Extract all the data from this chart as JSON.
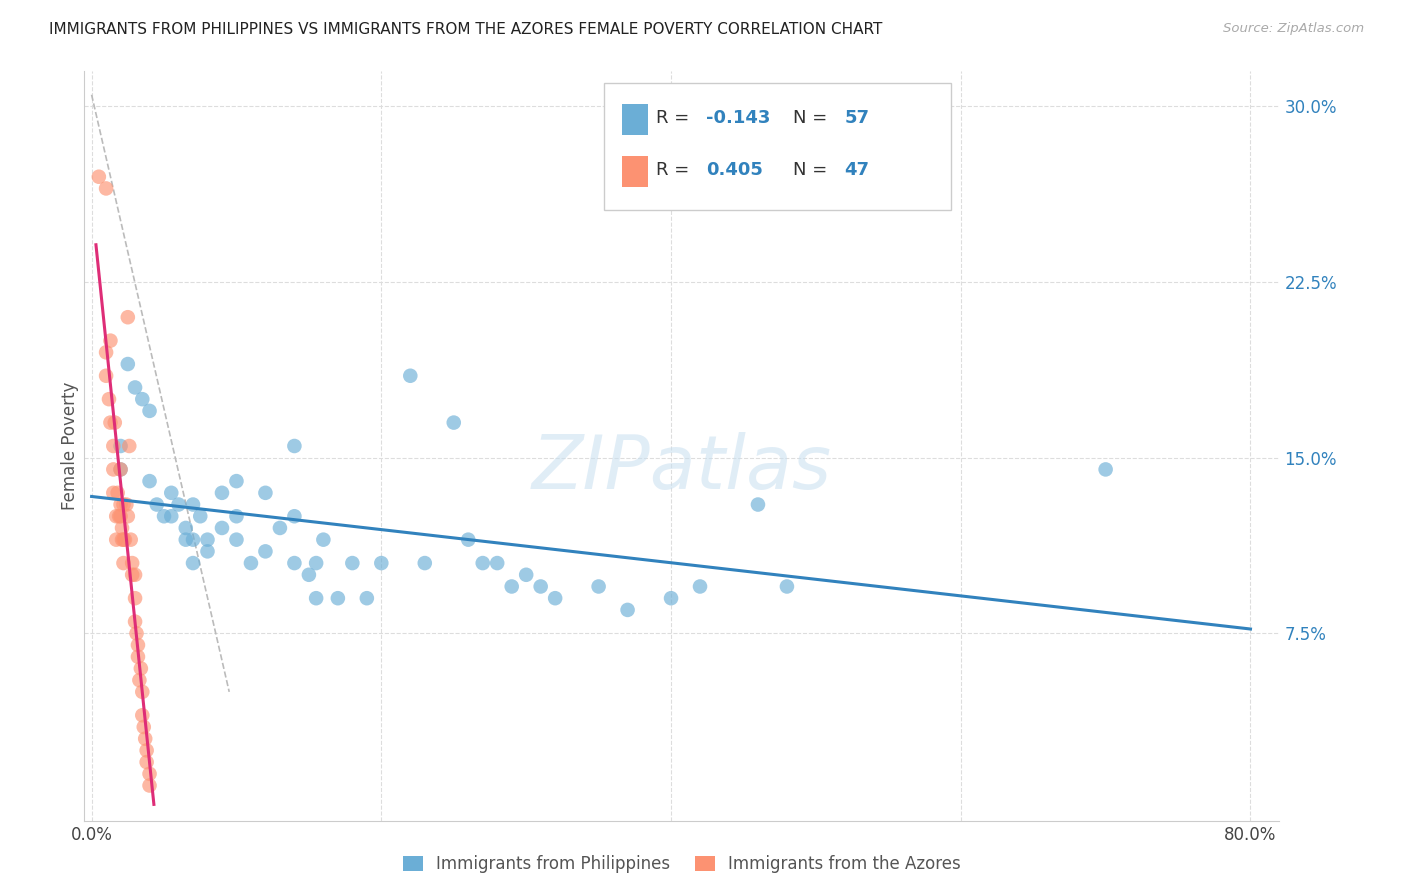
{
  "title": "IMMIGRANTS FROM PHILIPPINES VS IMMIGRANTS FROM THE AZORES FEMALE POVERTY CORRELATION CHART",
  "source": "Source: ZipAtlas.com",
  "ylabel": "Female Poverty",
  "xlim": [
    -0.005,
    0.82
  ],
  "ylim": [
    -0.005,
    0.315
  ],
  "legend_label1": "Immigrants from Philippines",
  "legend_label2": "Immigrants from the Azores",
  "blue_color": "#6baed6",
  "pink_color": "#fc9272",
  "blue_line_color": "#3182bd",
  "pink_line_color": "#de2d77",
  "blue_scatter": [
    [
      0.02,
      0.155
    ],
    [
      0.02,
      0.145
    ],
    [
      0.025,
      0.19
    ],
    [
      0.03,
      0.18
    ],
    [
      0.035,
      0.175
    ],
    [
      0.04,
      0.17
    ],
    [
      0.04,
      0.14
    ],
    [
      0.045,
      0.13
    ],
    [
      0.05,
      0.125
    ],
    [
      0.055,
      0.135
    ],
    [
      0.055,
      0.125
    ],
    [
      0.06,
      0.13
    ],
    [
      0.065,
      0.115
    ],
    [
      0.065,
      0.12
    ],
    [
      0.07,
      0.13
    ],
    [
      0.07,
      0.115
    ],
    [
      0.07,
      0.105
    ],
    [
      0.075,
      0.125
    ],
    [
      0.08,
      0.115
    ],
    [
      0.08,
      0.11
    ],
    [
      0.09,
      0.135
    ],
    [
      0.09,
      0.12
    ],
    [
      0.1,
      0.14
    ],
    [
      0.1,
      0.125
    ],
    [
      0.1,
      0.115
    ],
    [
      0.11,
      0.105
    ],
    [
      0.12,
      0.135
    ],
    [
      0.12,
      0.11
    ],
    [
      0.13,
      0.12
    ],
    [
      0.14,
      0.155
    ],
    [
      0.14,
      0.125
    ],
    [
      0.14,
      0.105
    ],
    [
      0.15,
      0.1
    ],
    [
      0.155,
      0.105
    ],
    [
      0.155,
      0.09
    ],
    [
      0.16,
      0.115
    ],
    [
      0.17,
      0.09
    ],
    [
      0.18,
      0.105
    ],
    [
      0.19,
      0.09
    ],
    [
      0.2,
      0.105
    ],
    [
      0.22,
      0.185
    ],
    [
      0.23,
      0.105
    ],
    [
      0.25,
      0.165
    ],
    [
      0.26,
      0.115
    ],
    [
      0.27,
      0.105
    ],
    [
      0.28,
      0.105
    ],
    [
      0.29,
      0.095
    ],
    [
      0.3,
      0.1
    ],
    [
      0.31,
      0.095
    ],
    [
      0.32,
      0.09
    ],
    [
      0.35,
      0.095
    ],
    [
      0.37,
      0.085
    ],
    [
      0.4,
      0.09
    ],
    [
      0.42,
      0.095
    ],
    [
      0.46,
      0.13
    ],
    [
      0.48,
      0.095
    ],
    [
      0.7,
      0.145
    ]
  ],
  "pink_scatter": [
    [
      0.005,
      0.27
    ],
    [
      0.01,
      0.265
    ],
    [
      0.01,
      0.195
    ],
    [
      0.01,
      0.185
    ],
    [
      0.012,
      0.175
    ],
    [
      0.013,
      0.165
    ],
    [
      0.013,
      0.2
    ],
    [
      0.015,
      0.155
    ],
    [
      0.015,
      0.145
    ],
    [
      0.015,
      0.135
    ],
    [
      0.016,
      0.165
    ],
    [
      0.017,
      0.125
    ],
    [
      0.017,
      0.115
    ],
    [
      0.018,
      0.135
    ],
    [
      0.019,
      0.125
    ],
    [
      0.02,
      0.145
    ],
    [
      0.02,
      0.13
    ],
    [
      0.02,
      0.125
    ],
    [
      0.021,
      0.115
    ],
    [
      0.021,
      0.12
    ],
    [
      0.022,
      0.13
    ],
    [
      0.022,
      0.115
    ],
    [
      0.022,
      0.105
    ],
    [
      0.023,
      0.115
    ],
    [
      0.024,
      0.13
    ],
    [
      0.025,
      0.125
    ],
    [
      0.025,
      0.21
    ],
    [
      0.026,
      0.155
    ],
    [
      0.027,
      0.115
    ],
    [
      0.028,
      0.105
    ],
    [
      0.028,
      0.1
    ],
    [
      0.03,
      0.1
    ],
    [
      0.03,
      0.09
    ],
    [
      0.03,
      0.08
    ],
    [
      0.031,
      0.075
    ],
    [
      0.032,
      0.07
    ],
    [
      0.032,
      0.065
    ],
    [
      0.033,
      0.055
    ],
    [
      0.034,
      0.06
    ],
    [
      0.035,
      0.05
    ],
    [
      0.035,
      0.04
    ],
    [
      0.036,
      0.035
    ],
    [
      0.037,
      0.03
    ],
    [
      0.038,
      0.025
    ],
    [
      0.038,
      0.02
    ],
    [
      0.04,
      0.015
    ],
    [
      0.04,
      0.01
    ]
  ],
  "watermark": "ZIPatlas",
  "background_color": "#ffffff",
  "grid_color": "#dddddd"
}
